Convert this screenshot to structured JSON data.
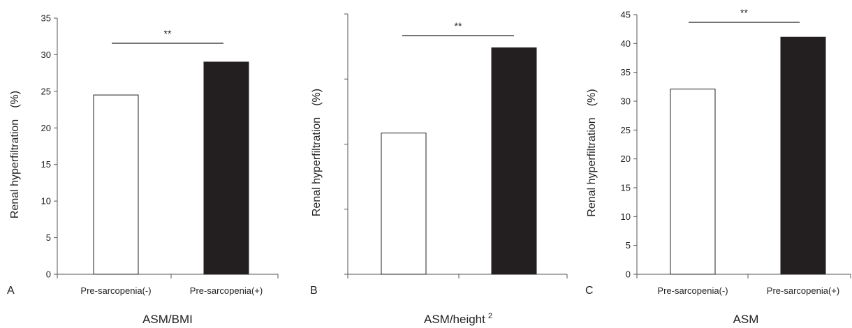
{
  "chart_data": [
    {
      "type": "bar",
      "panel_label": "A",
      "title": "ASM/BMI",
      "ylabel": "Renal hyperfiltration　(%)",
      "categories": [
        "Pre-sarcopenia(-)",
        "Pre-sarcopenia(+)"
      ],
      "values": [
        24.5,
        29.0
      ],
      "bar_colors": [
        "#ffffff",
        "#231f20"
      ],
      "ylim": [
        0,
        35
      ],
      "yticks": [
        0,
        5,
        10,
        15,
        20,
        25,
        30,
        35
      ],
      "show_tick_labels": true,
      "significance": "**"
    },
    {
      "type": "bar",
      "panel_label": "B",
      "title": "ASM/height",
      "title_superscript": "2",
      "ylabel": "Renal hyperfiltration　(%)",
      "categories": [
        "",
        ""
      ],
      "values": [
        21.7,
        34.8
      ],
      "bar_colors": [
        "#ffffff",
        "#231f20"
      ],
      "ylim": [
        0,
        40
      ],
      "yticks": [
        0,
        10,
        20,
        30,
        40
      ],
      "show_tick_labels": false,
      "significance": "**"
    },
    {
      "type": "bar",
      "panel_label": "C",
      "title": "ASM",
      "ylabel": "Renal hyperfiltration　(%)",
      "categories": [
        "Pre-sarcopenia(-)",
        "Pre-sarcopenia(+)"
      ],
      "values": [
        32.1,
        41.1
      ],
      "bar_colors": [
        "#ffffff",
        "#231f20"
      ],
      "ylim": [
        0,
        45
      ],
      "yticks": [
        0,
        5,
        10,
        15,
        20,
        25,
        30,
        35,
        40,
        45
      ],
      "show_tick_labels": true,
      "significance": "**"
    }
  ]
}
